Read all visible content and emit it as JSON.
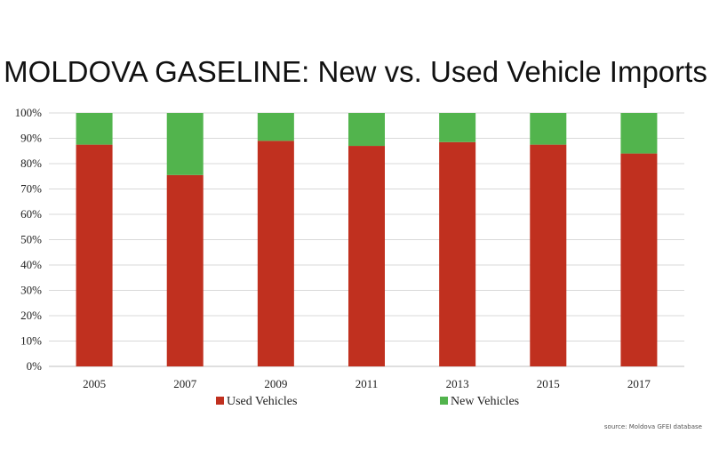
{
  "chart_data": {
    "type": "bar",
    "stacked": true,
    "title": "MOLDOVA GASELINE: New vs. Used Vehicle Imports",
    "categories": [
      "2005",
      "2007",
      "2009",
      "2011",
      "2013",
      "2015",
      "2017"
    ],
    "series": [
      {
        "name": "Used Vehicles",
        "color": "#c0301f",
        "values": [
          87.5,
          75.5,
          89,
          87,
          88.5,
          87.5,
          84
        ]
      },
      {
        "name": "New Vehicles",
        "color": "#52b44d",
        "values": [
          12.5,
          24.5,
          11,
          13,
          11.5,
          12.5,
          16
        ]
      }
    ],
    "ylim": [
      0,
      100
    ],
    "yticks": [
      "0%",
      "10%",
      "20%",
      "30%",
      "40%",
      "50%",
      "60%",
      "70%",
      "80%",
      "90%",
      "100%"
    ],
    "grid": true,
    "legend": "bottom",
    "source": "source: Moldova GFEI database"
  }
}
